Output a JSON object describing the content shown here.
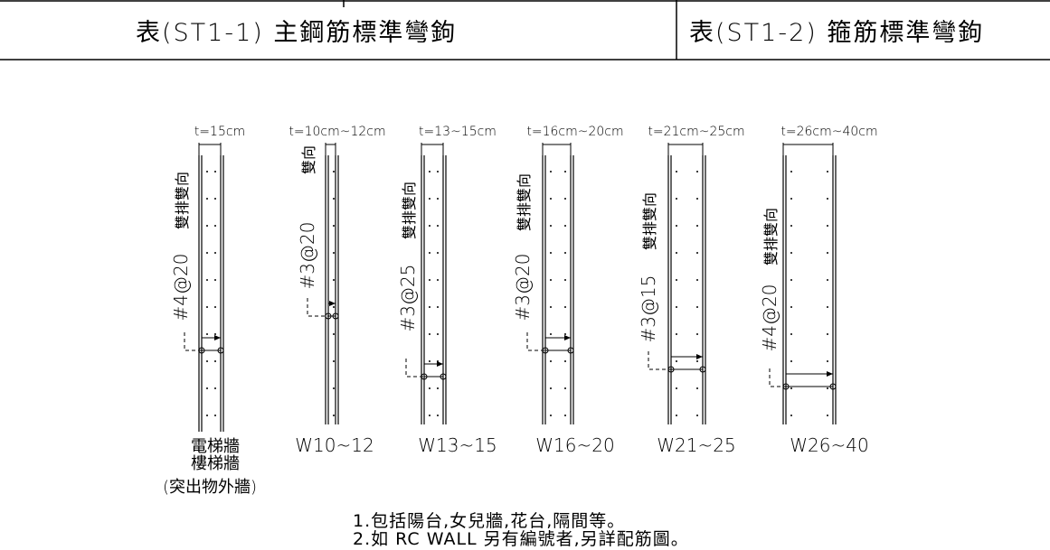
{
  "header": {
    "table1_title": "表(ST1-1) 主鋼筋標準彎鉤",
    "table2_title": "表(ST1-2) 箍筋標準彎鉤"
  },
  "walls": [
    {
      "thickness_label": "t=15cm",
      "rebar_label": "#4@20",
      "layout_label": "雙排雙向",
      "type_label": "電梯牆",
      "type_label_2": "樓梯牆",
      "type_label_3": "(突出物外牆)"
    },
    {
      "thickness_label": "t=10cm~12cm",
      "rebar_label": "#3@20",
      "layout_label": "雙向",
      "type_label": "W10~12"
    },
    {
      "thickness_label": "t=13~15cm",
      "rebar_label": "#3@25",
      "layout_label": "雙排雙向",
      "type_label": "W13~15"
    },
    {
      "thickness_label": "t=16cm~20cm",
      "rebar_label": "#3@20",
      "layout_label": "雙排雙向",
      "type_label": "W16~20"
    },
    {
      "thickness_label": "t=21cm~25cm",
      "rebar_label": "#3@15",
      "layout_label": "雙排雙向",
      "type_label": "W21~25"
    },
    {
      "thickness_label": "t=26cm~40cm",
      "rebar_label": "#4@20",
      "layout_label": "雙排雙向",
      "type_label": "W26~40"
    }
  ],
  "notes": [
    "1.包括陽台,女兒牆,花台,隔間等。",
    "2.如 RC WALL 另有編號者,另詳配筋圖。"
  ],
  "colors": {
    "line": "#000000",
    "background": "#ffffff"
  }
}
